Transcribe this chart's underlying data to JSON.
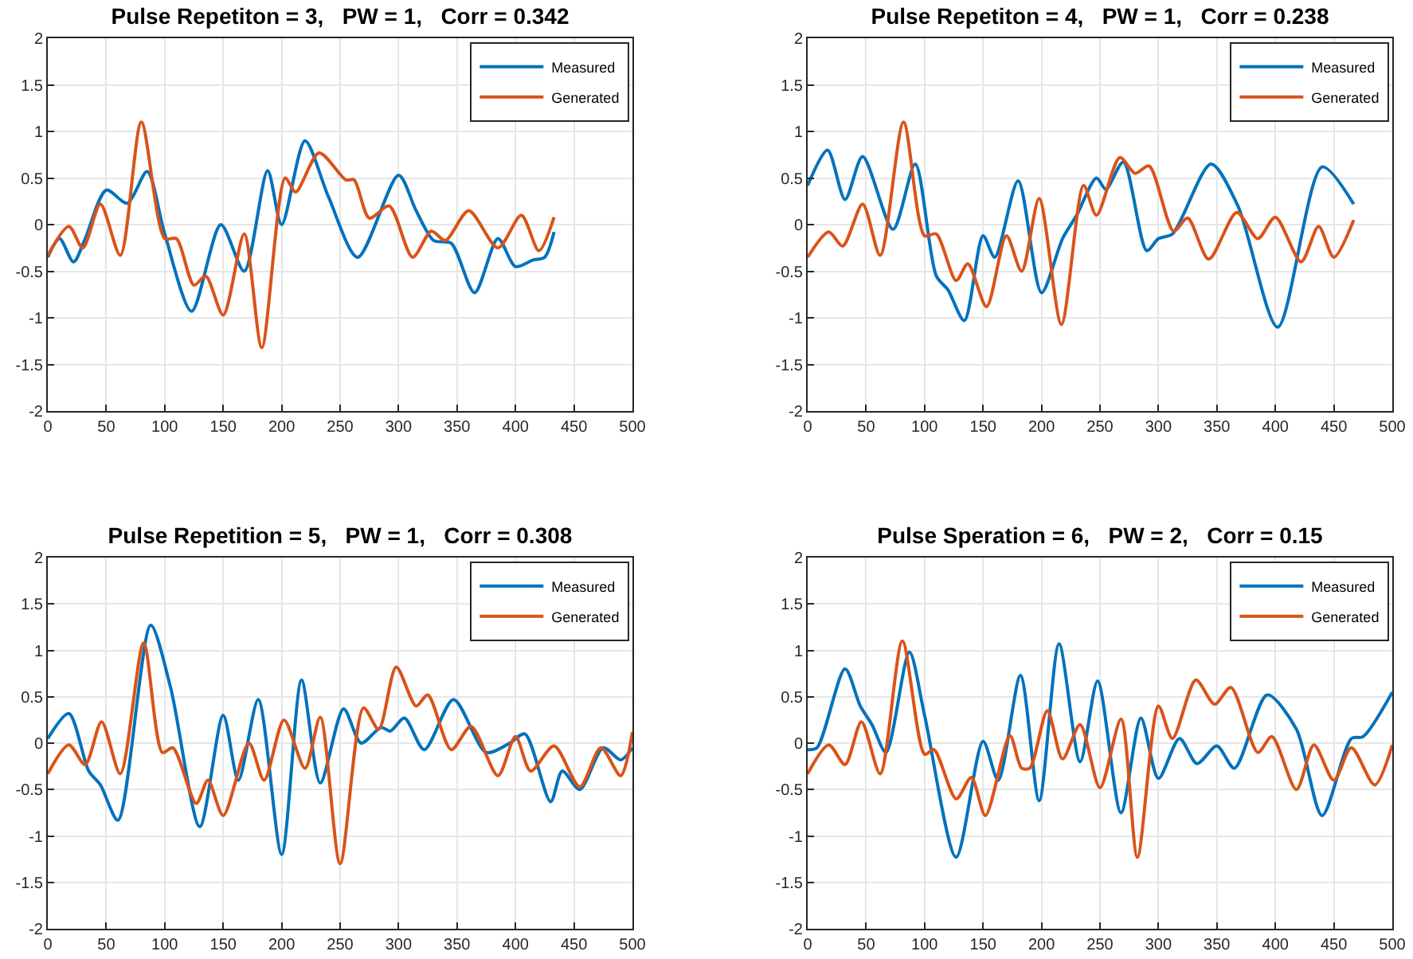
{
  "chart_data": [
    {
      "type": "line",
      "title": "Pulse Repetiton = 3,   PW = 1,   Corr = 0.342",
      "xlim": [
        0,
        500
      ],
      "xticks": [
        0,
        50,
        100,
        150,
        200,
        250,
        300,
        350,
        400,
        450,
        500
      ],
      "ylim": [
        -2,
        2
      ],
      "yticks": [
        -2,
        -1.5,
        -1,
        -0.5,
        0,
        0.5,
        1,
        1.5,
        2
      ],
      "grid": true,
      "legend": "top right",
      "line_style": "solid",
      "series": [
        {
          "name": "Measured",
          "color": "#0072bd",
          "x": [
            0,
            10,
            22,
            32,
            50,
            68,
            85,
            100,
            123,
            148,
            168,
            188,
            200,
            220,
            240,
            265,
            300,
            315,
            330,
            345,
            365,
            385,
            400,
            415,
            425,
            433
          ],
          "values": [
            -0.35,
            -0.15,
            -0.4,
            -0.15,
            0.37,
            0.23,
            0.57,
            -0.1,
            -0.93,
            0,
            -0.5,
            0.58,
            0,
            0.9,
            0.3,
            -0.35,
            0.53,
            0.15,
            -0.17,
            -0.2,
            -0.73,
            -0.15,
            -0.45,
            -0.38,
            -0.35,
            -0.08
          ]
        },
        {
          "name": "Generated",
          "color": "#d95319",
          "x": [
            0,
            18,
            30,
            45,
            62,
            80,
            100,
            110,
            125,
            135,
            150,
            168,
            183,
            203,
            212,
            232,
            255,
            262,
            275,
            292,
            312,
            328,
            340,
            360,
            385,
            405,
            420,
            433
          ],
          "values": [
            -0.33,
            -0.02,
            -0.25,
            0.22,
            -0.33,
            1.1,
            -0.15,
            -0.15,
            -0.65,
            -0.55,
            -0.97,
            -0.1,
            -1.32,
            0.5,
            0.35,
            0.77,
            0.48,
            0.48,
            0.07,
            0.2,
            -0.35,
            -0.07,
            -0.17,
            0.15,
            -0.25,
            0.1,
            -0.28,
            0.08
          ]
        }
      ]
    },
    {
      "type": "line",
      "title": "Pulse Repetiton = 4,   PW = 1,   Corr = 0.238",
      "xlim": [
        0,
        500
      ],
      "xticks": [
        0,
        50,
        100,
        150,
        200,
        250,
        300,
        350,
        400,
        450,
        500
      ],
      "ylim": [
        -2,
        2
      ],
      "yticks": [
        -2,
        -1.5,
        -1,
        -0.5,
        0,
        0.5,
        1,
        1.5,
        2
      ],
      "grid": true,
      "legend": "top right",
      "line_style": "solid",
      "series": [
        {
          "name": "Measured",
          "color": "#0072bd",
          "x": [
            0,
            17,
            32,
            47,
            73,
            92,
            110,
            120,
            134,
            150,
            160,
            180,
            200,
            218,
            230,
            247,
            255,
            270,
            290,
            300,
            312,
            345,
            368,
            402,
            440,
            467
          ],
          "values": [
            0.42,
            0.8,
            0.27,
            0.73,
            -0.05,
            0.65,
            -0.55,
            -0.7,
            -1.03,
            -0.12,
            -0.35,
            0.47,
            -0.73,
            -0.15,
            0.1,
            0.5,
            0.38,
            0.67,
            -0.28,
            -0.15,
            -0.1,
            0.65,
            0.2,
            -1.1,
            0.62,
            0.22
          ]
        },
        {
          "name": "Generated",
          "color": "#d95319",
          "x": [
            0,
            18,
            30,
            47,
            62,
            82,
            100,
            110,
            127,
            137,
            153,
            170,
            183,
            198,
            217,
            236,
            247,
            267,
            280,
            292,
            313,
            325,
            343,
            367,
            385,
            400,
            422,
            437,
            450,
            467
          ],
          "values": [
            -0.35,
            -0.08,
            -0.23,
            0.22,
            -0.33,
            1.1,
            -0.12,
            -0.1,
            -0.6,
            -0.42,
            -0.88,
            -0.12,
            -0.5,
            0.28,
            -1.07,
            0.42,
            0.1,
            0.72,
            0.55,
            0.63,
            -0.07,
            0.07,
            -0.37,
            0.13,
            -0.15,
            0.08,
            -0.4,
            -0.02,
            -0.35,
            0.05
          ]
        }
      ]
    },
    {
      "type": "line",
      "title": "Pulse Repetition = 5,   PW = 1,   Corr = 0.308",
      "xlim": [
        0,
        500
      ],
      "xticks": [
        0,
        50,
        100,
        150,
        200,
        250,
        300,
        350,
        400,
        450,
        500
      ],
      "ylim": [
        -2,
        2
      ],
      "yticks": [
        -2,
        -1.5,
        -1,
        -0.5,
        0,
        0.5,
        1,
        1.5,
        2
      ],
      "grid": true,
      "legend": "top right",
      "line_style": "solid",
      "series": [
        {
          "name": "Measured",
          "color": "#0072bd",
          "x": [
            0,
            18,
            35,
            45,
            60,
            88,
            105,
            130,
            150,
            163,
            180,
            200,
            217,
            233,
            253,
            268,
            285,
            293,
            305,
            322,
            347,
            375,
            395,
            408,
            430,
            440,
            455,
            475,
            490,
            500
          ],
          "values": [
            0.05,
            0.32,
            -0.3,
            -0.45,
            -0.83,
            1.27,
            0.6,
            -0.9,
            0.3,
            -0.4,
            0.47,
            -1.2,
            0.68,
            -0.43,
            0.37,
            0,
            0.17,
            0.13,
            0.27,
            -0.07,
            0.47,
            -0.1,
            0,
            0.1,
            -0.63,
            -0.3,
            -0.5,
            -0.05,
            -0.18,
            -0.05
          ]
        },
        {
          "name": "Generated",
          "color": "#d95319",
          "x": [
            0,
            18,
            32,
            46,
            62,
            82,
            98,
            107,
            127,
            137,
            150,
            172,
            185,
            202,
            220,
            233,
            250,
            270,
            283,
            298,
            315,
            325,
            345,
            362,
            385,
            400,
            413,
            433,
            455,
            473,
            490,
            500
          ],
          "values": [
            -0.33,
            -0.02,
            -0.23,
            0.23,
            -0.33,
            1.08,
            -0.1,
            -0.05,
            -0.65,
            -0.4,
            -0.78,
            0,
            -0.4,
            0.25,
            -0.27,
            0.28,
            -1.3,
            0.38,
            0.15,
            0.82,
            0.4,
            0.52,
            -0.07,
            0.18,
            -0.35,
            0.07,
            -0.3,
            -0.03,
            -0.47,
            -0.05,
            -0.35,
            0.12
          ]
        }
      ]
    },
    {
      "type": "line",
      "title": "Pulse Speration = 6,   PW = 2,   Corr = 0.15",
      "xlim": [
        0,
        500
      ],
      "xticks": [
        0,
        50,
        100,
        150,
        200,
        250,
        300,
        350,
        400,
        450,
        500
      ],
      "ylim": [
        -2,
        2
      ],
      "yticks": [
        -2,
        -1.5,
        -1,
        -0.5,
        0,
        0.5,
        1,
        1.5,
        2
      ],
      "grid": true,
      "legend": "top right",
      "line_style": "solid",
      "series": [
        {
          "name": "Measured",
          "color": "#0072bd",
          "x": [
            0,
            8,
            32,
            45,
            55,
            67,
            87,
            100,
            127,
            150,
            163,
            182,
            198,
            215,
            233,
            248,
            268,
            285,
            300,
            318,
            333,
            350,
            365,
            393,
            418,
            440,
            465,
            475,
            500
          ],
          "values": [
            -0.07,
            -0.05,
            0.8,
            0.4,
            0.2,
            -0.1,
            0.98,
            0.3,
            -1.23,
            0.02,
            -0.4,
            0.73,
            -0.62,
            1.07,
            -0.2,
            0.67,
            -0.75,
            0.27,
            -0.38,
            0.05,
            -0.22,
            -0.03,
            -0.27,
            0.52,
            0.15,
            -0.78,
            0.05,
            0.07,
            0.55
          ]
        },
        {
          "name": "Generated",
          "color": "#d95319",
          "x": [
            0,
            18,
            32,
            46,
            62,
            81,
            100,
            108,
            127,
            140,
            152,
            173,
            183,
            190,
            205,
            218,
            233,
            250,
            268,
            282,
            300,
            312,
            332,
            348,
            362,
            385,
            397,
            418,
            433,
            450,
            465,
            485,
            500
          ],
          "values": [
            -0.33,
            -0.02,
            -0.23,
            0.23,
            -0.33,
            1.1,
            -0.12,
            -0.07,
            -0.6,
            -0.37,
            -0.78,
            0.08,
            -0.27,
            -0.27,
            0.35,
            -0.17,
            0.2,
            -0.48,
            0.26,
            -1.23,
            0.4,
            0.05,
            0.68,
            0.42,
            0.6,
            -0.1,
            0.07,
            -0.5,
            -0.02,
            -0.4,
            -0.05,
            -0.45,
            -0.02
          ]
        }
      ]
    }
  ]
}
